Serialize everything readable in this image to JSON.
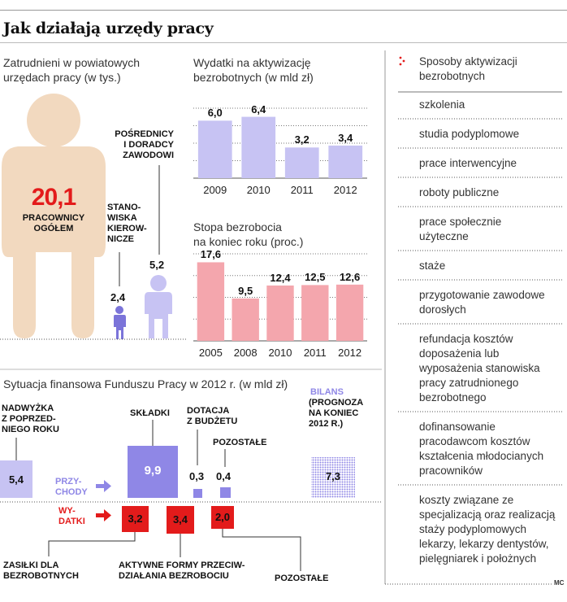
{
  "title": "Jak działają urzędy pracy",
  "employees": {
    "header": [
      "Zatrudnieni w powiatowych",
      "urzędach pracy (w tys.)"
    ],
    "total_value": "20,1",
    "total_label": [
      "PRACOWNICY",
      "OGÓŁEM"
    ],
    "managers_label": [
      "STANO-",
      "WISKA",
      "KIEROW-",
      "NICZE"
    ],
    "managers_value": "2,4",
    "advisors_label": [
      "POŚREDNICY",
      "I DORADCY",
      "ZAWODOWI"
    ],
    "advisors_value": "5,2",
    "colors": {
      "total": "#f2d9bf",
      "total_text": "#e31b1b",
      "managers": "#7b74d9",
      "advisors": "#c7c3f3"
    }
  },
  "spending": {
    "header": [
      "Wydatki na aktywizację",
      "bezrobotnych (w mld zł)"
    ]
  },
  "unemployment": {
    "header": [
      "Stopa bezrobocia",
      "na koniec roku (proc.)"
    ]
  },
  "list": {
    "header": [
      "Sposoby aktywizacji",
      "bezrobotnych"
    ],
    "items": [
      [
        "szkolenia"
      ],
      [
        "studia podyplomowe"
      ],
      [
        "prace interwencyjne"
      ],
      [
        "roboty publiczne"
      ],
      [
        "prace społecznie",
        "użyteczne"
      ],
      [
        "staże"
      ],
      [
        "przygotowanie zawodowe",
        "dorosłych"
      ],
      [
        "refundacja kosztów",
        "doposażenia lub",
        "wyposażenia stanowiska",
        "pracy zatrudnionego",
        "bezrobotnego"
      ],
      [
        "dofinansowanie",
        "pracodawcom kosztów",
        "kształcenia młodocianych",
        "pracowników"
      ],
      [
        "koszty związane ze",
        "specjalizacją oraz realizacją",
        "staży podyplomowych",
        "lekarzy, lekarzy dentystów,",
        "pielęgniarek i położnych"
      ]
    ],
    "accent": "#e31b1b"
  },
  "fund": {
    "header": "Sytuacja finansowa Funduszu Pracy w 2012 r. (w mld zł)",
    "surplus_label": [
      "NADWYŻKA",
      "Z POPRZED-",
      "NIEGO ROKU"
    ],
    "surplus_value": "5,4",
    "income_label": [
      "PRZY-",
      "CHODY"
    ],
    "contributions_label": "SKŁADKI",
    "contributions_value": "9,9",
    "subsidy_label": [
      "DOTACJA",
      "Z BUDŻETU"
    ],
    "subsidy_value": "0,3",
    "other_income_label": "POZOSTAŁE",
    "other_income_value": "0,4",
    "balance_label": [
      "BILANS"
    ],
    "balance_sub": [
      "(PROGNOZA",
      "NA KONIEC",
      "2012 R.)"
    ],
    "balance_value": "7,3",
    "expenses_label": [
      "WY-",
      "DATKI"
    ],
    "benefits_label": [
      "ZASIŁKI DLA",
      "BEZROBOTNYCH"
    ],
    "benefits_value": "3,2",
    "active_label": [
      "AKTYWNE FORMY PRZECIW-",
      "DZIAŁANIA BEZROBOCIU"
    ],
    "active_value": "3,4",
    "other_exp_label": "POZOSTAŁE",
    "other_exp_value": "2,0",
    "colors": {
      "surplus": "#c7c3f3",
      "income": "#8f87e6",
      "expense": "#e31b1b",
      "income_text": "#8f87e6",
      "balance": "#8f87e6"
    }
  },
  "credit": "MC",
  "chart_data": [
    {
      "type": "bar",
      "categories": [
        "2009",
        "2010",
        "2011",
        "2012"
      ],
      "values": [
        6.0,
        6.4,
        3.2,
        3.4
      ],
      "value_labels": [
        "6,0",
        "6,4",
        "3,2",
        "3,4"
      ],
      "title": "Wydatki na aktywizację bezrobotnych (w mld zł)",
      "ylim": [
        0,
        7.3
      ],
      "grid": true,
      "color": "#c7c3f3"
    },
    {
      "type": "bar",
      "categories": [
        "2005",
        "2008",
        "2010",
        "2011",
        "2012"
      ],
      "values": [
        17.6,
        9.5,
        12.4,
        12.5,
        12.6
      ],
      "value_labels": [
        "17,6",
        "9,5",
        "12,4",
        "12,5",
        "12,6"
      ],
      "title": "Stopa bezrobocia na koniec roku (proc.)",
      "ylim": [
        0,
        19.5
      ],
      "grid": true,
      "color": "#f4a6ad"
    }
  ]
}
